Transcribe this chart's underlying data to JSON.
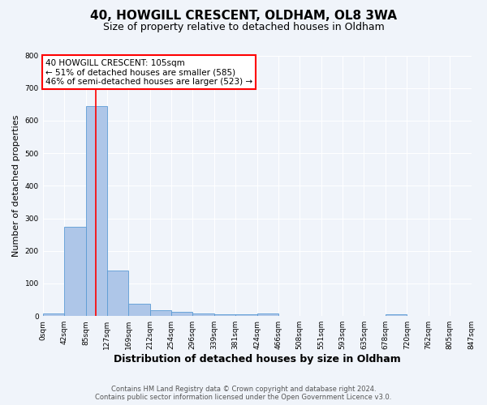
{
  "title": "40, HOWGILL CRESCENT, OLDHAM, OL8 3WA",
  "subtitle": "Size of property relative to detached houses in Oldham",
  "xlabel": "Distribution of detached houses by size in Oldham",
  "ylabel": "Number of detached properties",
  "bin_edges": [
    0,
    42,
    85,
    127,
    169,
    212,
    254,
    296,
    339,
    381,
    424,
    466,
    508,
    551,
    593,
    635,
    678,
    720,
    762,
    805,
    847
  ],
  "bin_counts": [
    8,
    275,
    645,
    140,
    38,
    18,
    12,
    8,
    5,
    5,
    7,
    0,
    0,
    0,
    0,
    0,
    6,
    0,
    0,
    0
  ],
  "bar_color": "#aec6e8",
  "bar_edge_color": "#5b9bd5",
  "property_size": 105,
  "vline_color": "red",
  "annotation_text": "40 HOWGILL CRESCENT: 105sqm\n← 51% of detached houses are smaller (585)\n46% of semi-detached houses are larger (523) →",
  "annotation_box_color": "white",
  "annotation_box_edge": "red",
  "ylim": [
    0,
    800
  ],
  "yticks": [
    0,
    100,
    200,
    300,
    400,
    500,
    600,
    700,
    800
  ],
  "tick_labels": [
    "0sqm",
    "42sqm",
    "85sqm",
    "127sqm",
    "169sqm",
    "212sqm",
    "254sqm",
    "296sqm",
    "339sqm",
    "381sqm",
    "424sqm",
    "466sqm",
    "508sqm",
    "551sqm",
    "593sqm",
    "635sqm",
    "678sqm",
    "720sqm",
    "762sqm",
    "805sqm",
    "847sqm"
  ],
  "footer_line1": "Contains HM Land Registry data © Crown copyright and database right 2024.",
  "footer_line2": "Contains public sector information licensed under the Open Government Licence v3.0.",
  "bg_color": "#f0f4fa",
  "grid_color": "white",
  "title_fontsize": 11,
  "subtitle_fontsize": 9,
  "xlabel_fontsize": 9,
  "ylabel_fontsize": 8,
  "tick_fontsize": 6.5,
  "annotation_fontsize": 7.5,
  "footer_fontsize": 6
}
